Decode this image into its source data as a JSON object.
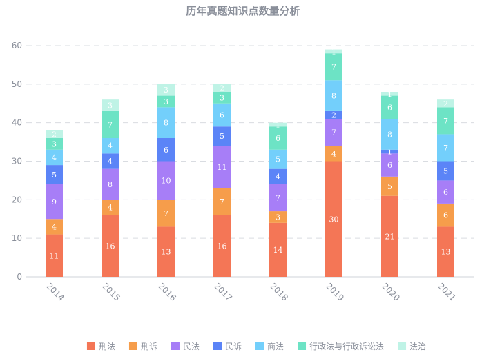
{
  "chart_data": {
    "type": "bar",
    "stacked": true,
    "title": "历年真题知识点数量分析",
    "xlabel": "",
    "ylabel": "",
    "categories": [
      "2014",
      "2015",
      "2016",
      "2017",
      "2018",
      "2019",
      "2020",
      "2021"
    ],
    "ylim": [
      0,
      60
    ],
    "yticks": [
      0,
      10,
      20,
      30,
      40,
      50,
      60
    ],
    "grid": true,
    "legend_position": "bottom",
    "series": [
      {
        "name": "刑法",
        "color": "#f47656",
        "values": [
          11,
          16,
          13,
          16,
          14,
          30,
          21,
          13
        ]
      },
      {
        "name": "刑诉",
        "color": "#f69d4b",
        "values": [
          4,
          4,
          7,
          7,
          3,
          4,
          5,
          6
        ]
      },
      {
        "name": "民法",
        "color": "#a77ef7",
        "values": [
          9,
          8,
          10,
          11,
          7,
          7,
          6,
          6
        ]
      },
      {
        "name": "民诉",
        "color": "#5b84f7",
        "values": [
          5,
          4,
          6,
          5,
          4,
          2,
          1,
          5
        ]
      },
      {
        "name": "商法",
        "color": "#73cffb",
        "values": [
          4,
          4,
          8,
          6,
          5,
          8,
          8,
          7
        ]
      },
      {
        "name": "行政法与行政诉讼法",
        "color": "#6de3c5",
        "values": [
          3,
          7,
          3,
          3,
          6,
          7,
          6,
          7
        ]
      },
      {
        "name": "法治",
        "color": "#bff3e6",
        "values": [
          2,
          3,
          3,
          2,
          1,
          1,
          1,
          2
        ]
      }
    ]
  }
}
